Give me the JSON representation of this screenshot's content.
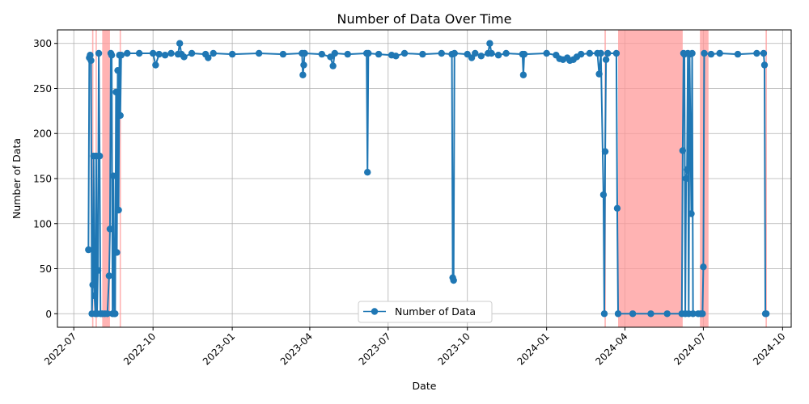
{
  "chart_data": {
    "type": "line",
    "title": "Number of Data Over Time",
    "xlabel": "Date",
    "ylabel": "Number of Data",
    "xlim": [
      "2022-06-12",
      "2024-10-11"
    ],
    "ylim": [
      -15,
      315
    ],
    "grid": true,
    "legend_position": "bottom-center",
    "series_color": "#1f77b4",
    "shade_color": "#ff9999",
    "x_ticks": [
      "2022-07",
      "2022-10",
      "2023-01",
      "2023-04",
      "2023-07",
      "2023-10",
      "2024-01",
      "2024-04",
      "2024-07",
      "2024-10"
    ],
    "y_ticks": [
      0,
      50,
      100,
      150,
      200,
      250,
      300
    ],
    "shaded_regions": [
      [
        "2022-07-23",
        "2022-07-23"
      ],
      [
        "2022-07-27",
        "2022-07-27"
      ],
      [
        "2022-08-03",
        "2022-08-12"
      ],
      [
        "2022-08-24",
        "2022-08-25"
      ],
      [
        "2024-03-09",
        "2024-03-09"
      ],
      [
        "2024-03-24",
        "2024-06-07"
      ],
      [
        "2024-06-27",
        "2024-07-07"
      ],
      [
        "2024-09-12",
        "2024-09-12"
      ]
    ],
    "series": [
      {
        "name": "Number of Data",
        "points": [
          [
            "2022-07-18",
            71
          ],
          [
            "2022-07-19",
            284
          ],
          [
            "2022-07-20",
            287
          ],
          [
            "2022-07-21",
            281
          ],
          [
            "2022-07-22",
            0
          ],
          [
            "2022-07-23",
            32
          ],
          [
            "2022-07-24",
            175
          ],
          [
            "2022-07-25",
            20
          ],
          [
            "2022-07-26",
            0
          ],
          [
            "2022-07-27",
            175
          ],
          [
            "2022-07-28",
            0
          ],
          [
            "2022-07-29",
            48
          ],
          [
            "2022-07-30",
            289
          ],
          [
            "2022-07-31",
            175
          ],
          [
            "2022-08-01",
            0
          ],
          [
            "2022-08-03",
            0
          ],
          [
            "2022-08-06",
            0
          ],
          [
            "2022-08-09",
            0
          ],
          [
            "2022-08-11",
            42
          ],
          [
            "2022-08-12",
            94
          ],
          [
            "2022-08-13",
            289
          ],
          [
            "2022-08-14",
            287
          ],
          [
            "2022-08-15",
            0
          ],
          [
            "2022-08-16",
            153
          ],
          [
            "2022-08-17",
            0
          ],
          [
            "2022-08-18",
            0
          ],
          [
            "2022-08-19",
            246
          ],
          [
            "2022-08-20",
            68
          ],
          [
            "2022-08-21",
            270
          ],
          [
            "2022-08-22",
            115
          ],
          [
            "2022-08-23",
            287
          ],
          [
            "2022-08-24",
            220
          ],
          [
            "2022-08-25",
            287
          ],
          [
            "2022-09-01",
            289
          ],
          [
            "2022-09-15",
            289
          ],
          [
            "2022-10-01",
            289
          ],
          [
            "2022-10-04",
            276
          ],
          [
            "2022-10-08",
            288
          ],
          [
            "2022-10-15",
            287
          ],
          [
            "2022-10-22",
            289
          ],
          [
            "2022-10-30",
            288
          ],
          [
            "2022-11-01",
            300
          ],
          [
            "2022-11-03",
            288
          ],
          [
            "2022-11-06",
            285
          ],
          [
            "2022-11-15",
            289
          ],
          [
            "2022-12-01",
            288
          ],
          [
            "2022-12-04",
            284
          ],
          [
            "2022-12-10",
            289
          ],
          [
            "2023-01-01",
            288
          ],
          [
            "2023-02-01",
            289
          ],
          [
            "2023-03-01",
            288
          ],
          [
            "2023-03-23",
            289
          ],
          [
            "2023-03-24",
            265
          ],
          [
            "2023-03-25",
            276
          ],
          [
            "2023-03-26",
            289
          ],
          [
            "2023-04-15",
            288
          ],
          [
            "2023-04-25",
            285
          ],
          [
            "2023-04-28",
            275
          ],
          [
            "2023-04-30",
            289
          ],
          [
            "2023-05-15",
            288
          ],
          [
            "2023-06-06",
            289
          ],
          [
            "2023-06-07",
            157
          ],
          [
            "2023-06-08",
            289
          ],
          [
            "2023-06-20",
            288
          ],
          [
            "2023-07-05",
            287
          ],
          [
            "2023-07-10",
            286
          ],
          [
            "2023-07-20",
            289
          ],
          [
            "2023-08-10",
            288
          ],
          [
            "2023-09-01",
            289
          ],
          [
            "2023-09-13",
            288
          ],
          [
            "2023-09-14",
            40
          ],
          [
            "2023-09-15",
            37
          ],
          [
            "2023-09-16",
            289
          ],
          [
            "2023-10-01",
            288
          ],
          [
            "2023-10-06",
            284
          ],
          [
            "2023-10-10",
            289
          ],
          [
            "2023-10-17",
            286
          ],
          [
            "2023-10-25",
            289
          ],
          [
            "2023-10-27",
            300
          ],
          [
            "2023-10-29",
            289
          ],
          [
            "2023-11-06",
            287
          ],
          [
            "2023-11-15",
            289
          ],
          [
            "2023-12-04",
            288
          ],
          [
            "2023-12-05",
            265
          ],
          [
            "2023-12-06",
            288
          ],
          [
            "2024-01-01",
            289
          ],
          [
            "2024-01-12",
            287
          ],
          [
            "2024-01-16",
            283
          ],
          [
            "2024-01-20",
            282
          ],
          [
            "2024-01-25",
            284
          ],
          [
            "2024-01-28",
            281
          ],
          [
            "2024-02-01",
            282
          ],
          [
            "2024-02-05",
            285
          ],
          [
            "2024-02-10",
            288
          ],
          [
            "2024-02-20",
            289
          ],
          [
            "2024-02-29",
            289
          ],
          [
            "2024-03-02",
            266
          ],
          [
            "2024-03-04",
            289
          ],
          [
            "2024-03-07",
            132
          ],
          [
            "2024-03-08",
            0
          ],
          [
            "2024-03-09",
            180
          ],
          [
            "2024-03-10",
            282
          ],
          [
            "2024-03-12",
            289
          ],
          [
            "2024-03-22",
            289
          ],
          [
            "2024-03-23",
            117
          ],
          [
            "2024-03-24",
            0
          ],
          [
            "2024-04-10",
            0
          ],
          [
            "2024-05-01",
            0
          ],
          [
            "2024-05-20",
            0
          ],
          [
            "2024-06-06",
            0
          ],
          [
            "2024-06-07",
            181
          ],
          [
            "2024-06-08",
            289
          ],
          [
            "2024-06-09",
            288
          ],
          [
            "2024-06-10",
            0
          ],
          [
            "2024-06-11",
            150
          ],
          [
            "2024-06-12",
            160
          ],
          [
            "2024-06-13",
            289
          ],
          [
            "2024-06-14",
            0
          ],
          [
            "2024-06-15",
            288
          ],
          [
            "2024-06-17",
            111
          ],
          [
            "2024-06-18",
            289
          ],
          [
            "2024-06-19",
            0
          ],
          [
            "2024-06-25",
            0
          ],
          [
            "2024-06-28",
            0
          ],
          [
            "2024-06-30",
            0
          ],
          [
            "2024-07-01",
            52
          ],
          [
            "2024-07-02",
            289
          ],
          [
            "2024-07-10",
            288
          ],
          [
            "2024-07-20",
            289
          ],
          [
            "2024-08-10",
            288
          ],
          [
            "2024-09-01",
            289
          ],
          [
            "2024-09-09",
            289
          ],
          [
            "2024-09-10",
            276
          ],
          [
            "2024-09-11",
            0
          ],
          [
            "2024-09-12",
            0
          ]
        ]
      }
    ]
  }
}
